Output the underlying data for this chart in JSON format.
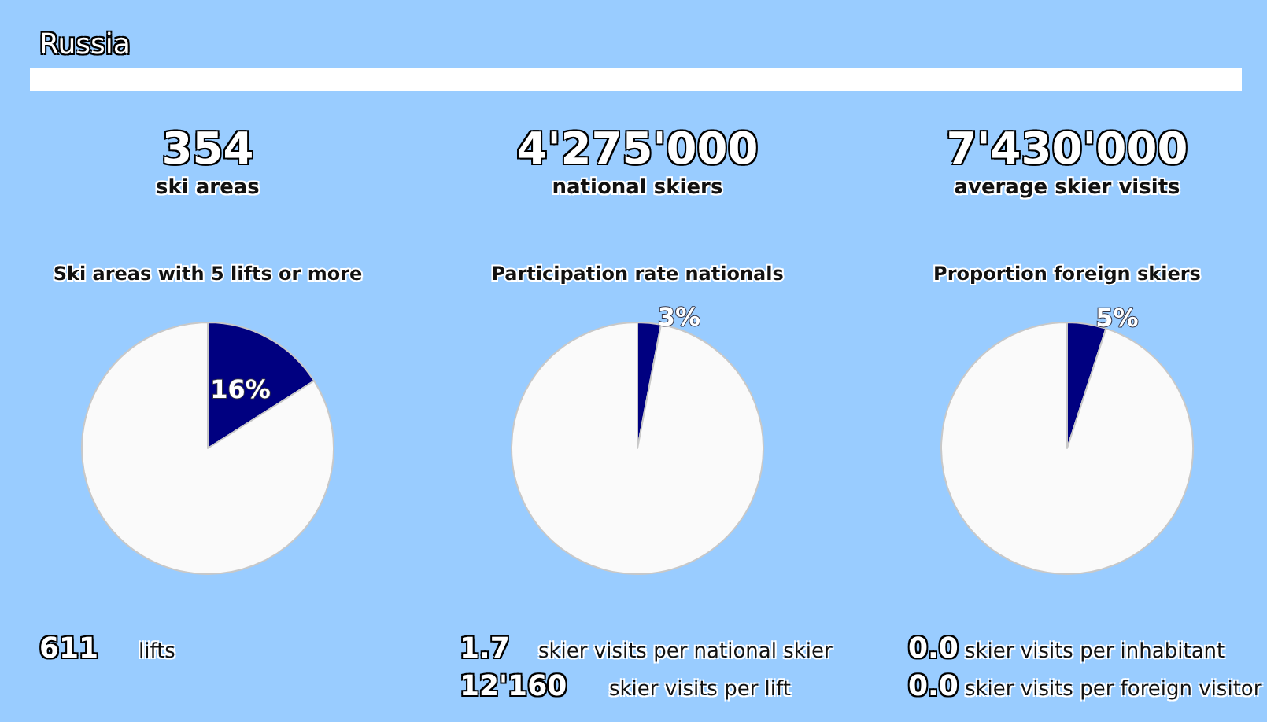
{
  "chart_data": [
    {
      "type": "other",
      "title": "Russia"
    },
    {
      "type": "other",
      "title": "354",
      "subtitle": "ski areas"
    },
    {
      "type": "other",
      "title": "4'275'000",
      "subtitle": "national skiers"
    },
    {
      "type": "other",
      "title": "7'430'000",
      "subtitle": "average skier visits"
    },
    {
      "type": "pie",
      "title": "Ski areas with 5 lifts or more",
      "categories": [
        null,
        null
      ],
      "values": [
        16,
        84
      ],
      "colors": [
        "#000080",
        "#fafafa"
      ],
      "value_labels": [
        "16%",
        null
      ]
    },
    {
      "type": "pie",
      "title": "Participation rate nationals",
      "categories": [
        null,
        null
      ],
      "values": [
        3,
        97
      ],
      "colors": [
        "#000080",
        "#fafafa"
      ],
      "value_labels": [
        "3%",
        null
      ]
    },
    {
      "type": "pie",
      "title": "Proportion foreign skiers",
      "categories": [
        null,
        null
      ],
      "values": [
        5,
        95
      ],
      "colors": [
        "#000080",
        "#fafafa"
      ],
      "value_labels": [
        "5%",
        null
      ]
    },
    {
      "type": "other",
      "annotations": [
        "611",
        "lifts"
      ]
    },
    {
      "type": "other",
      "annotations": [
        "1.7",
        "skier visits per national skier",
        "12'160",
        "skier visits per lift"
      ]
    },
    {
      "type": "other",
      "annotations": [
        "0.0",
        "skier visits per inhabitant",
        "0.0",
        "skier visits per foreign visitor"
      ]
    }
  ]
}
